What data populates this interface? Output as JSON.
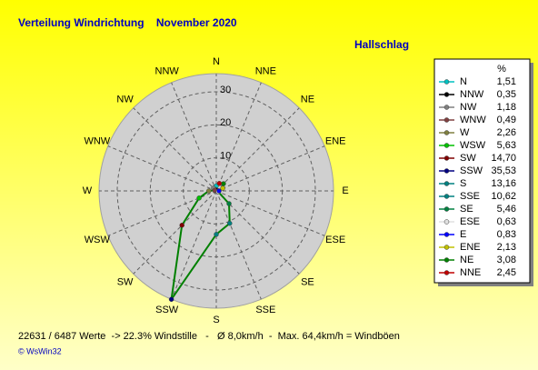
{
  "chart_data": {
    "type": "polar",
    "title": "Verteilung Windrichtung    November 2020",
    "subtitle": "Hallschlag",
    "legend_title": "%",
    "categories": [
      "N",
      "NNW",
      "NW",
      "WNW",
      "W",
      "WSW",
      "SW",
      "SSW",
      "S",
      "SSE",
      "SE",
      "ESE",
      "E",
      "ENE",
      "NE",
      "NNE"
    ],
    "values": [
      1.51,
      0.35,
      1.18,
      0.49,
      2.26,
      5.63,
      14.7,
      35.53,
      13.16,
      10.62,
      5.46,
      0.63,
      0.83,
      2.13,
      3.08,
      2.45
    ],
    "value_labels": [
      "1,51",
      "0,35",
      "1,18",
      "0,49",
      "2,26",
      "5,63",
      "14,70",
      "35,53",
      "13,16",
      "10,62",
      "5,46",
      "0,63",
      "0,83",
      "2,13",
      "3,08",
      "2,45"
    ],
    "colors": [
      "#00c0c0",
      "#000000",
      "#808080",
      "#804040",
      "#808040",
      "#00c000",
      "#800000",
      "#000080",
      "#008080",
      "#008080",
      "#008040",
      "#e0e0e0",
      "#0000ff",
      "#c0c000",
      "#008000",
      "#c00000"
    ],
    "line_color": "#008000",
    "rlim": [
      0,
      35.5
    ],
    "rticks": [
      10,
      20,
      30
    ],
    "grid": true,
    "footer": "22631 / 6487 Werte  -> 22.3% Windstille   -   Ø 8,0km/h  -  Max. 64,4km/h = Windböen",
    "credit": "© WsWin32"
  }
}
